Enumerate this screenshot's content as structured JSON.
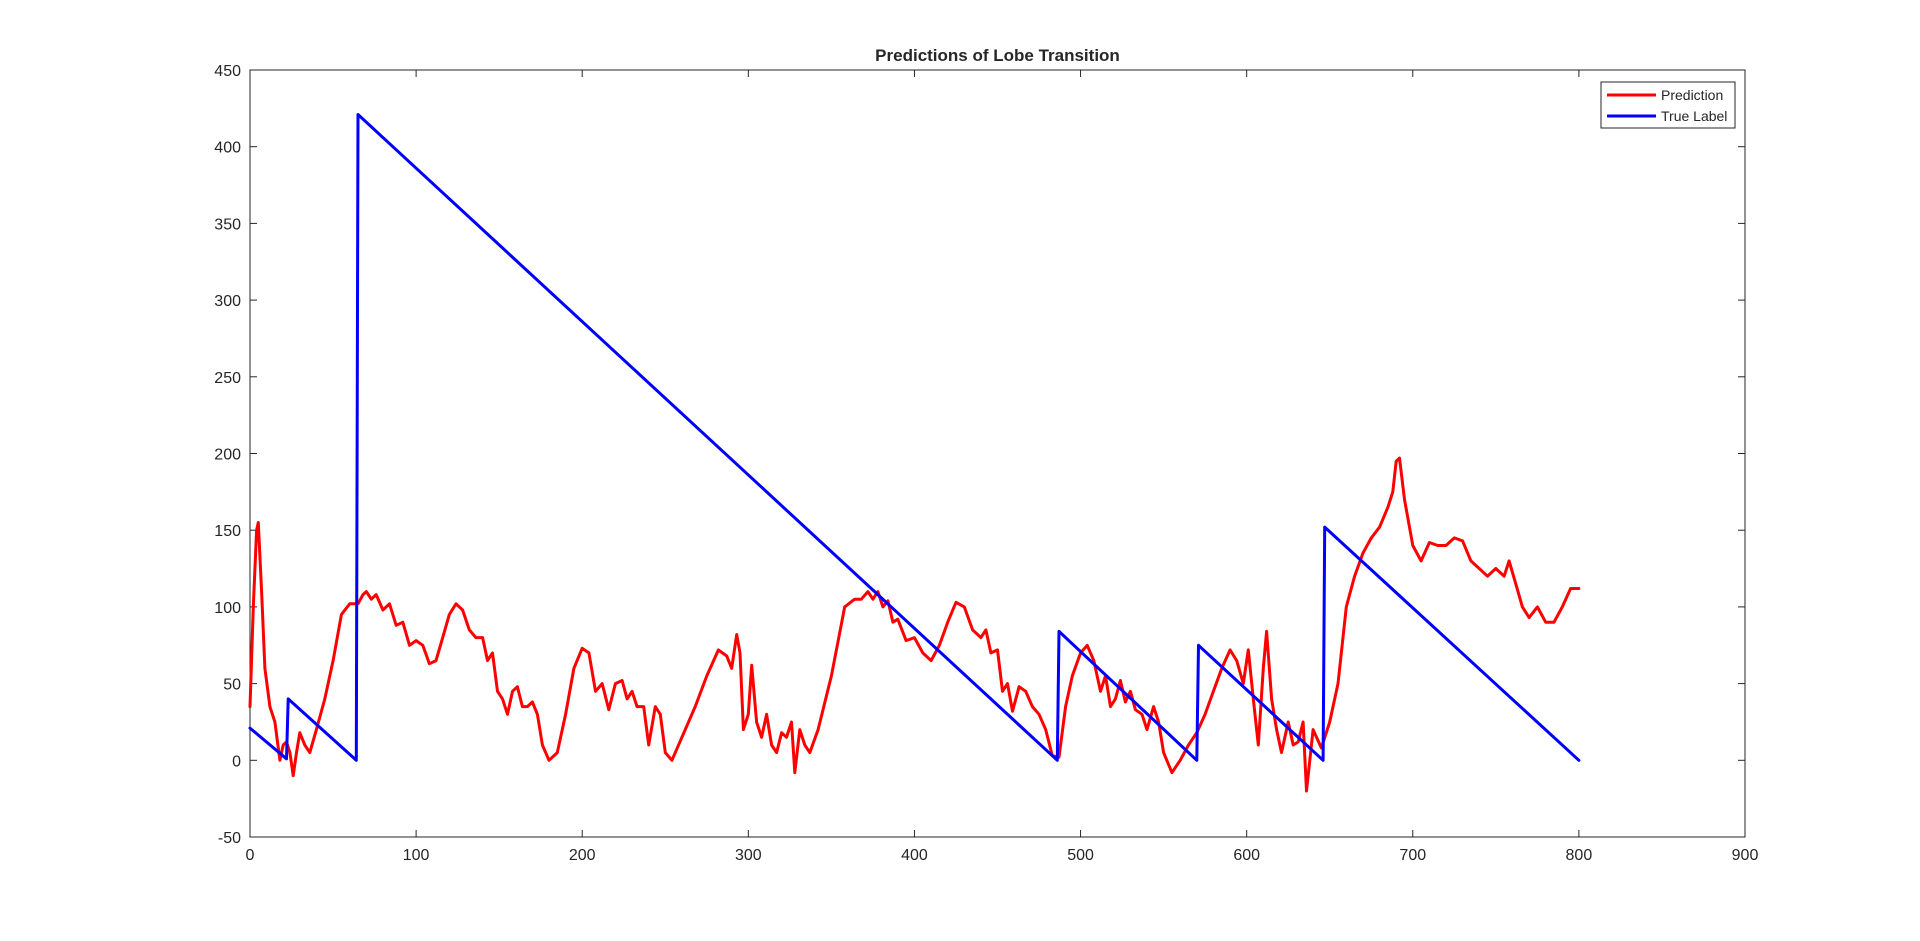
{
  "chart_data": {
    "type": "line",
    "title": "Predictions of Lobe Transition",
    "xlabel": "",
    "ylabel": "",
    "xlim": [
      0,
      900
    ],
    "ylim": [
      -50,
      450
    ],
    "xticks": [
      0,
      100,
      200,
      300,
      400,
      500,
      600,
      700,
      800,
      900
    ],
    "yticks": [
      -50,
      0,
      50,
      100,
      150,
      200,
      250,
      300,
      350,
      400,
      450
    ],
    "grid": false,
    "legend_position": "top-right",
    "series": [
      {
        "name": "Prediction",
        "color": "#ff0000",
        "points": [
          [
            0,
            35
          ],
          [
            2,
            100
          ],
          [
            4,
            150
          ],
          [
            5,
            155
          ],
          [
            7,
            110
          ],
          [
            9,
            60
          ],
          [
            12,
            35
          ],
          [
            15,
            25
          ],
          [
            18,
            0
          ],
          [
            20,
            10
          ],
          [
            22,
            12
          ],
          [
            24,
            5
          ],
          [
            26,
            -10
          ],
          [
            28,
            5
          ],
          [
            30,
            18
          ],
          [
            33,
            10
          ],
          [
            36,
            5
          ],
          [
            40,
            20
          ],
          [
            45,
            40
          ],
          [
            50,
            65
          ],
          [
            55,
            95
          ],
          [
            60,
            102
          ],
          [
            65,
            102
          ],
          [
            68,
            108
          ],
          [
            70,
            110
          ],
          [
            73,
            105
          ],
          [
            76,
            108
          ],
          [
            80,
            98
          ],
          [
            84,
            102
          ],
          [
            88,
            88
          ],
          [
            92,
            90
          ],
          [
            96,
            75
          ],
          [
            100,
            78
          ],
          [
            104,
            75
          ],
          [
            108,
            63
          ],
          [
            112,
            65
          ],
          [
            116,
            80
          ],
          [
            120,
            95
          ],
          [
            124,
            102
          ],
          [
            128,
            98
          ],
          [
            132,
            85
          ],
          [
            136,
            80
          ],
          [
            140,
            80
          ],
          [
            143,
            65
          ],
          [
            146,
            70
          ],
          [
            149,
            45
          ],
          [
            152,
            40
          ],
          [
            155,
            30
          ],
          [
            158,
            45
          ],
          [
            161,
            48
          ],
          [
            164,
            35
          ],
          [
            167,
            35
          ],
          [
            170,
            38
          ],
          [
            173,
            30
          ],
          [
            176,
            10
          ],
          [
            180,
            0
          ],
          [
            185,
            5
          ],
          [
            190,
            30
          ],
          [
            195,
            60
          ],
          [
            200,
            73
          ],
          [
            204,
            70
          ],
          [
            208,
            45
          ],
          [
            212,
            50
          ],
          [
            216,
            33
          ],
          [
            220,
            50
          ],
          [
            224,
            52
          ],
          [
            227,
            40
          ],
          [
            230,
            45
          ],
          [
            233,
            35
          ],
          [
            237,
            35
          ],
          [
            240,
            10
          ],
          [
            244,
            35
          ],
          [
            247,
            30
          ],
          [
            250,
            5
          ],
          [
            254,
            0
          ],
          [
            260,
            15
          ],
          [
            268,
            35
          ],
          [
            275,
            55
          ],
          [
            282,
            72
          ],
          [
            287,
            68
          ],
          [
            290,
            60
          ],
          [
            293,
            82
          ],
          [
            295,
            70
          ],
          [
            297,
            20
          ],
          [
            300,
            30
          ],
          [
            302,
            62
          ],
          [
            305,
            25
          ],
          [
            308,
            15
          ],
          [
            311,
            30
          ],
          [
            314,
            10
          ],
          [
            317,
            5
          ],
          [
            320,
            18
          ],
          [
            323,
            15
          ],
          [
            326,
            25
          ],
          [
            328,
            -8
          ],
          [
            331,
            20
          ],
          [
            334,
            10
          ],
          [
            337,
            5
          ],
          [
            342,
            20
          ],
          [
            350,
            55
          ],
          [
            358,
            100
          ],
          [
            364,
            105
          ],
          [
            368,
            105
          ],
          [
            372,
            110
          ],
          [
            375,
            105
          ],
          [
            378,
            110
          ],
          [
            381,
            100
          ],
          [
            384,
            104
          ],
          [
            387,
            90
          ],
          [
            390,
            92
          ],
          [
            395,
            78
          ],
          [
            400,
            80
          ],
          [
            405,
            70
          ],
          [
            410,
            65
          ],
          [
            415,
            75
          ],
          [
            420,
            90
          ],
          [
            425,
            103
          ],
          [
            430,
            100
          ],
          [
            435,
            85
          ],
          [
            440,
            80
          ],
          [
            443,
            85
          ],
          [
            446,
            70
          ],
          [
            450,
            72
          ],
          [
            453,
            45
          ],
          [
            456,
            50
          ],
          [
            459,
            32
          ],
          [
            463,
            48
          ],
          [
            467,
            45
          ],
          [
            471,
            35
          ],
          [
            475,
            30
          ],
          [
            479,
            20
          ],
          [
            483,
            3
          ],
          [
            487,
            2
          ],
          [
            491,
            35
          ],
          [
            495,
            55
          ],
          [
            500,
            70
          ],
          [
            504,
            75
          ],
          [
            508,
            65
          ],
          [
            512,
            45
          ],
          [
            515,
            55
          ],
          [
            518,
            35
          ],
          [
            521,
            40
          ],
          [
            524,
            52
          ],
          [
            527,
            38
          ],
          [
            530,
            45
          ],
          [
            533,
            33
          ],
          [
            537,
            30
          ],
          [
            540,
            20
          ],
          [
            544,
            35
          ],
          [
            547,
            25
          ],
          [
            550,
            5
          ],
          [
            555,
            -8
          ],
          [
            560,
            0
          ],
          [
            565,
            10
          ],
          [
            570,
            18
          ],
          [
            575,
            30
          ],
          [
            580,
            45
          ],
          [
            585,
            60
          ],
          [
            590,
            72
          ],
          [
            594,
            65
          ],
          [
            598,
            50
          ],
          [
            601,
            72
          ],
          [
            604,
            40
          ],
          [
            607,
            10
          ],
          [
            610,
            60
          ],
          [
            612,
            84
          ],
          [
            615,
            40
          ],
          [
            618,
            20
          ],
          [
            621,
            5
          ],
          [
            625,
            25
          ],
          [
            628,
            10
          ],
          [
            631,
            12
          ],
          [
            634,
            25
          ],
          [
            636,
            -20
          ],
          [
            640,
            20
          ],
          [
            645,
            8
          ],
          [
            650,
            25
          ],
          [
            655,
            50
          ],
          [
            660,
            100
          ],
          [
            665,
            120
          ],
          [
            670,
            135
          ],
          [
            675,
            145
          ],
          [
            680,
            152
          ],
          [
            685,
            165
          ],
          [
            688,
            175
          ],
          [
            690,
            195
          ],
          [
            692,
            197
          ],
          [
            695,
            170
          ],
          [
            700,
            140
          ],
          [
            705,
            130
          ],
          [
            710,
            142
          ],
          [
            715,
            140
          ],
          [
            720,
            140
          ],
          [
            725,
            145
          ],
          [
            730,
            143
          ],
          [
            735,
            130
          ],
          [
            740,
            125
          ],
          [
            745,
            120
          ],
          [
            750,
            125
          ],
          [
            755,
            120
          ],
          [
            758,
            130
          ],
          [
            762,
            115
          ],
          [
            766,
            100
          ],
          [
            770,
            93
          ],
          [
            775,
            100
          ],
          [
            780,
            90
          ],
          [
            785,
            90
          ],
          [
            790,
            100
          ],
          [
            795,
            112
          ],
          [
            800,
            112
          ]
        ]
      },
      {
        "name": "True Label",
        "color": "#0000ff",
        "points": [
          [
            0,
            21
          ],
          [
            22,
            1
          ],
          [
            23,
            40
          ],
          [
            64,
            0
          ],
          [
            65,
            421
          ],
          [
            486,
            0
          ],
          [
            487,
            84
          ],
          [
            570,
            0
          ],
          [
            571,
            75
          ],
          [
            646,
            0
          ],
          [
            647,
            152
          ],
          [
            800,
            0
          ]
        ]
      }
    ]
  }
}
